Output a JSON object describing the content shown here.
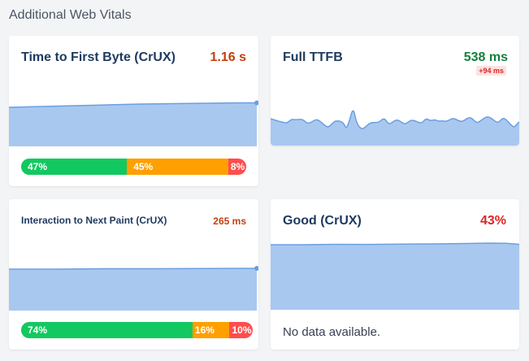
{
  "section_title": "Additional Web Vitals",
  "colors": {
    "good": "#12c860",
    "needs_improvement": "#ff9f00",
    "poor": "#ff4d4d",
    "chart_fill": "#a9c8f0",
    "chart_line": "#6b9fe0",
    "value_orange": "#c2410c",
    "value_green": "#15803d",
    "value_red": "#dc2626"
  },
  "cards": {
    "ttfb": {
      "title": "Time to First Byte (CrUX)",
      "value": "1.16 s",
      "distribution": [
        "47%",
        "45%",
        "8%"
      ],
      "distribution_values": [
        47,
        45,
        8
      ]
    },
    "full_ttfb": {
      "title": "Full TTFB",
      "value": "538 ms",
      "delta": "+94 ms"
    },
    "inp": {
      "title": "Interaction to Next Paint (CrUX)",
      "value": "265 ms",
      "distribution": [
        "74%",
        "16%",
        "10%"
      ],
      "distribution_values": [
        74,
        16,
        10
      ]
    },
    "good": {
      "title": "Good (CrUX)",
      "value": "43%",
      "no_data": "No data available."
    }
  }
}
